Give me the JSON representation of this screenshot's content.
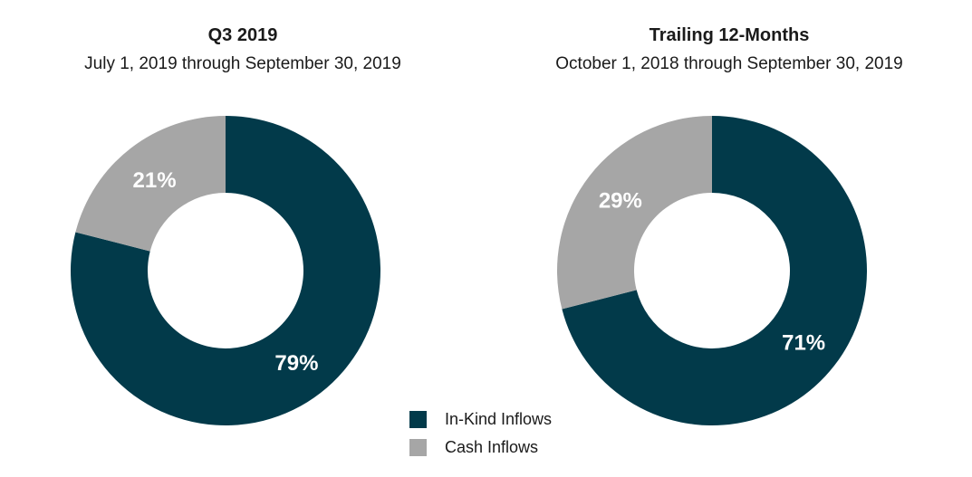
{
  "colors": {
    "in_kind": "#023a4a",
    "cash": "#a6a6a6"
  },
  "legend": [
    {
      "label": "In-Kind Inflows",
      "color": "#023a4a"
    },
    {
      "label": "Cash Inflows",
      "color": "#a6a6a6"
    }
  ],
  "chart_data": [
    {
      "type": "pie",
      "title": "Q3 2019",
      "subtitle": "July 1, 2019 through September 30, 2019",
      "slices": [
        {
          "label": "In-Kind Inflows",
          "value": 79,
          "display": "79%",
          "color": "#023a4a"
        },
        {
          "label": "Cash Inflows",
          "value": 21,
          "display": "21%",
          "color": "#a6a6a6"
        }
      ]
    },
    {
      "type": "pie",
      "title": "Trailing 12-Months",
      "subtitle": "October 1, 2018 through September 30, 2019",
      "slices": [
        {
          "label": "In-Kind Inflows",
          "value": 71,
          "display": "71%",
          "color": "#023a4a"
        },
        {
          "label": "Cash Inflows",
          "value": 29,
          "display": "29%",
          "color": "#a6a6a6"
        }
      ]
    }
  ]
}
